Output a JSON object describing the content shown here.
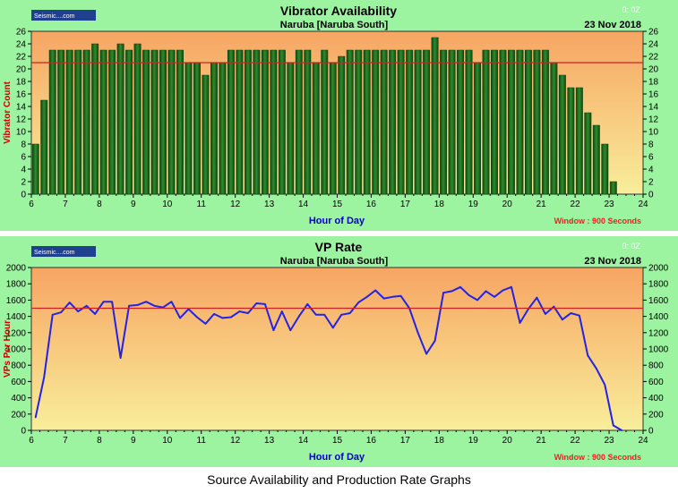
{
  "caption": "Source Availability and Production Rate Graphs",
  "colors": {
    "panel_bg": "#9cf3a0",
    "plot_top": "#f7a563",
    "plot_bottom": "#f8ee9b",
    "bar_fill": "#1d6b1d",
    "line": "#2323e6",
    "reference_line": "#cc2222",
    "title": "#000000",
    "axis_label": "#0000cc",
    "window_text": "#ee2222"
  },
  "chart_data": [
    {
      "type": "bar",
      "title": "Vibrator Availability",
      "subtitle": "Naruba  [Naruba South]",
      "date": "23 Nov 2018",
      "corner_text": "0: 0Z",
      "logo_text": "Seismic....com",
      "xlabel": "Hour of Day",
      "ylabel": "Vibrator Count",
      "window_text": "Window  : 900 Seconds",
      "xlim": [
        6,
        24
      ],
      "ylim": [
        0,
        26
      ],
      "x_ticks": [
        "6",
        "7",
        "8",
        "9",
        "10",
        "11",
        "12",
        "13",
        "14",
        "15",
        "16",
        "17",
        "18",
        "19",
        "20",
        "21",
        "22",
        "23",
        "24"
      ],
      "y_ticks": [
        "0",
        "2",
        "4",
        "6",
        "8",
        "10",
        "12",
        "14",
        "16",
        "18",
        "20",
        "22",
        "24",
        "26"
      ],
      "reference_value": 21,
      "x": [
        6.125,
        6.375,
        6.625,
        6.875,
        7.125,
        7.375,
        7.625,
        7.875,
        8.125,
        8.375,
        8.625,
        8.875,
        9.125,
        9.375,
        9.625,
        9.875,
        10.125,
        10.375,
        10.625,
        10.875,
        11.125,
        11.375,
        11.625,
        11.875,
        12.125,
        12.375,
        12.625,
        12.875,
        13.125,
        13.375,
        13.625,
        13.875,
        14.125,
        14.375,
        14.625,
        14.875,
        15.125,
        15.375,
        15.625,
        15.875,
        16.125,
        16.375,
        16.625,
        16.875,
        17.125,
        17.375,
        17.625,
        17.875,
        18.125,
        18.375,
        18.625,
        18.875,
        19.125,
        19.375,
        19.625,
        19.875,
        20.125,
        20.375,
        20.625,
        20.875,
        21.125,
        21.375,
        21.625,
        21.875,
        22.125,
        22.375,
        22.625,
        22.875,
        23.125
      ],
      "values": [
        8,
        15,
        23,
        23,
        23,
        23,
        23,
        24,
        23,
        23,
        24,
        23,
        24,
        23,
        23,
        23,
        23,
        23,
        21,
        21,
        19,
        21,
        21,
        23,
        23,
        23,
        23,
        23,
        23,
        23,
        21,
        23,
        23,
        21,
        23,
        21,
        22,
        23,
        23,
        23,
        23,
        23,
        23,
        23,
        23,
        23,
        23,
        25,
        23,
        23,
        23,
        23,
        21,
        23,
        23,
        23,
        23,
        23,
        23,
        23,
        23,
        21,
        19,
        17,
        17,
        13,
        11,
        8,
        2
      ]
    },
    {
      "type": "line",
      "title": "VP Rate",
      "subtitle": "Naruba  [Naruba South]",
      "date": "23 Nov 2018",
      "corner_text": "0: 0Z",
      "logo_text": "Seismic....com",
      "xlabel": "Hour of Day",
      "ylabel": "VPs Per Hour",
      "window_text": "Window  : 900 Seconds",
      "xlim": [
        6,
        24
      ],
      "ylim": [
        0,
        2000
      ],
      "x_ticks": [
        "6",
        "7",
        "8",
        "9",
        "10",
        "11",
        "12",
        "13",
        "14",
        "15",
        "16",
        "17",
        "18",
        "19",
        "20",
        "21",
        "22",
        "23",
        "24"
      ],
      "y_ticks": [
        "0",
        "200",
        "400",
        "600",
        "800",
        "1000",
        "1200",
        "1400",
        "1600",
        "1800",
        "2000"
      ],
      "reference_value": 1500,
      "x": [
        6.125,
        6.375,
        6.625,
        6.875,
        7.125,
        7.375,
        7.625,
        7.875,
        8.125,
        8.375,
        8.625,
        8.875,
        9.125,
        9.375,
        9.625,
        9.875,
        10.125,
        10.375,
        10.625,
        10.875,
        11.125,
        11.375,
        11.625,
        11.875,
        12.125,
        12.375,
        12.625,
        12.875,
        13.125,
        13.375,
        13.625,
        13.875,
        14.125,
        14.375,
        14.625,
        14.875,
        15.125,
        15.375,
        15.625,
        15.875,
        16.125,
        16.375,
        16.625,
        16.875,
        17.125,
        17.375,
        17.625,
        17.875,
        18.125,
        18.375,
        18.625,
        18.875,
        19.125,
        19.375,
        19.625,
        19.875,
        20.125,
        20.375,
        20.625,
        20.875,
        21.125,
        21.375,
        21.625,
        21.875,
        22.125,
        22.375,
        22.625,
        22.875,
        23.125,
        23.375
      ],
      "values": [
        160,
        650,
        1420,
        1450,
        1570,
        1460,
        1530,
        1430,
        1580,
        1580,
        890,
        1530,
        1540,
        1580,
        1530,
        1510,
        1580,
        1380,
        1490,
        1390,
        1310,
        1430,
        1380,
        1390,
        1460,
        1440,
        1560,
        1550,
        1230,
        1460,
        1230,
        1400,
        1550,
        1420,
        1420,
        1260,
        1420,
        1440,
        1570,
        1640,
        1720,
        1620,
        1640,
        1650,
        1500,
        1200,
        940,
        1100,
        1690,
        1710,
        1760,
        1660,
        1600,
        1710,
        1640,
        1720,
        1760,
        1320,
        1490,
        1630,
        1430,
        1520,
        1360,
        1440,
        1410,
        920,
        760,
        560,
        60,
        0
      ]
    }
  ]
}
